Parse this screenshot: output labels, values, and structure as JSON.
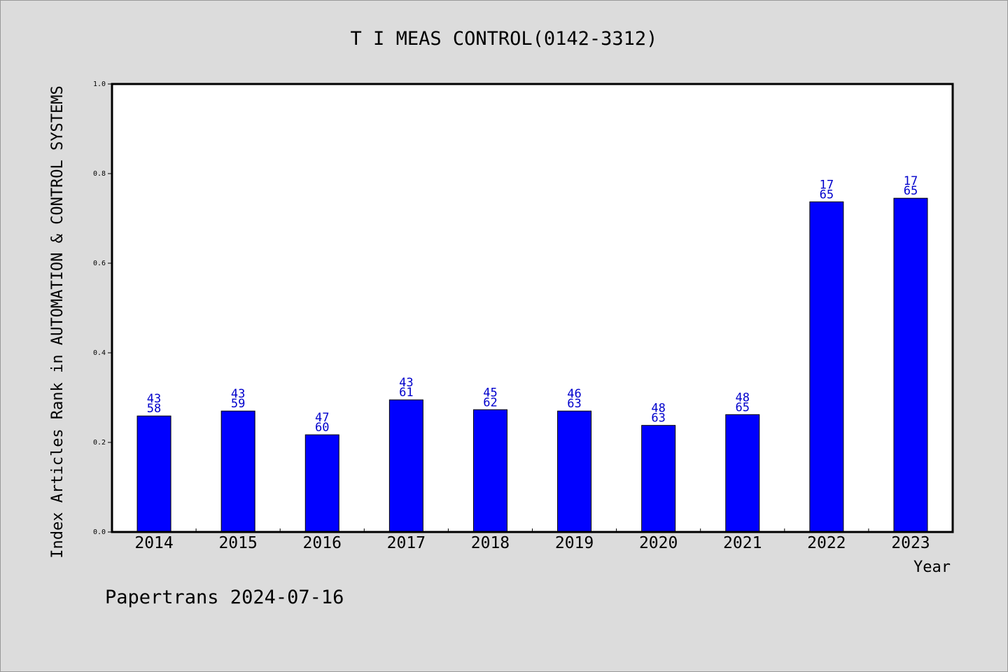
{
  "chart_data": {
    "type": "bar",
    "title": "T I MEAS CONTROL(0142-3312)",
    "xlabel": "Year",
    "ylabel": "Index Articles Rank in AUTOMATION & CONTROL SYSTEMS",
    "ylim": [
      0,
      1.0
    ],
    "yticks": [
      "0.0",
      "0.2",
      "0.4",
      "0.6",
      "0.8",
      "1.0"
    ],
    "categories": [
      "2014",
      "2015",
      "2016",
      "2017",
      "2018",
      "2019",
      "2020",
      "2021",
      "2022",
      "2023"
    ],
    "values": [
      0.259,
      0.27,
      0.217,
      0.295,
      0.273,
      0.27,
      0.238,
      0.262,
      0.737,
      0.745
    ],
    "labels": [
      [
        "43",
        "58"
      ],
      [
        "43",
        "59"
      ],
      [
        "47",
        "60"
      ],
      [
        "43",
        "61"
      ],
      [
        "45",
        "62"
      ],
      [
        "46",
        "63"
      ],
      [
        "48",
        "63"
      ],
      [
        "48",
        "65"
      ],
      [
        "17",
        "65"
      ],
      [
        "17",
        "65"
      ]
    ],
    "bar_color": "#0000ff",
    "label_color": "#0000cc",
    "grid": false
  },
  "footer": "Papertrans 2024-07-16"
}
